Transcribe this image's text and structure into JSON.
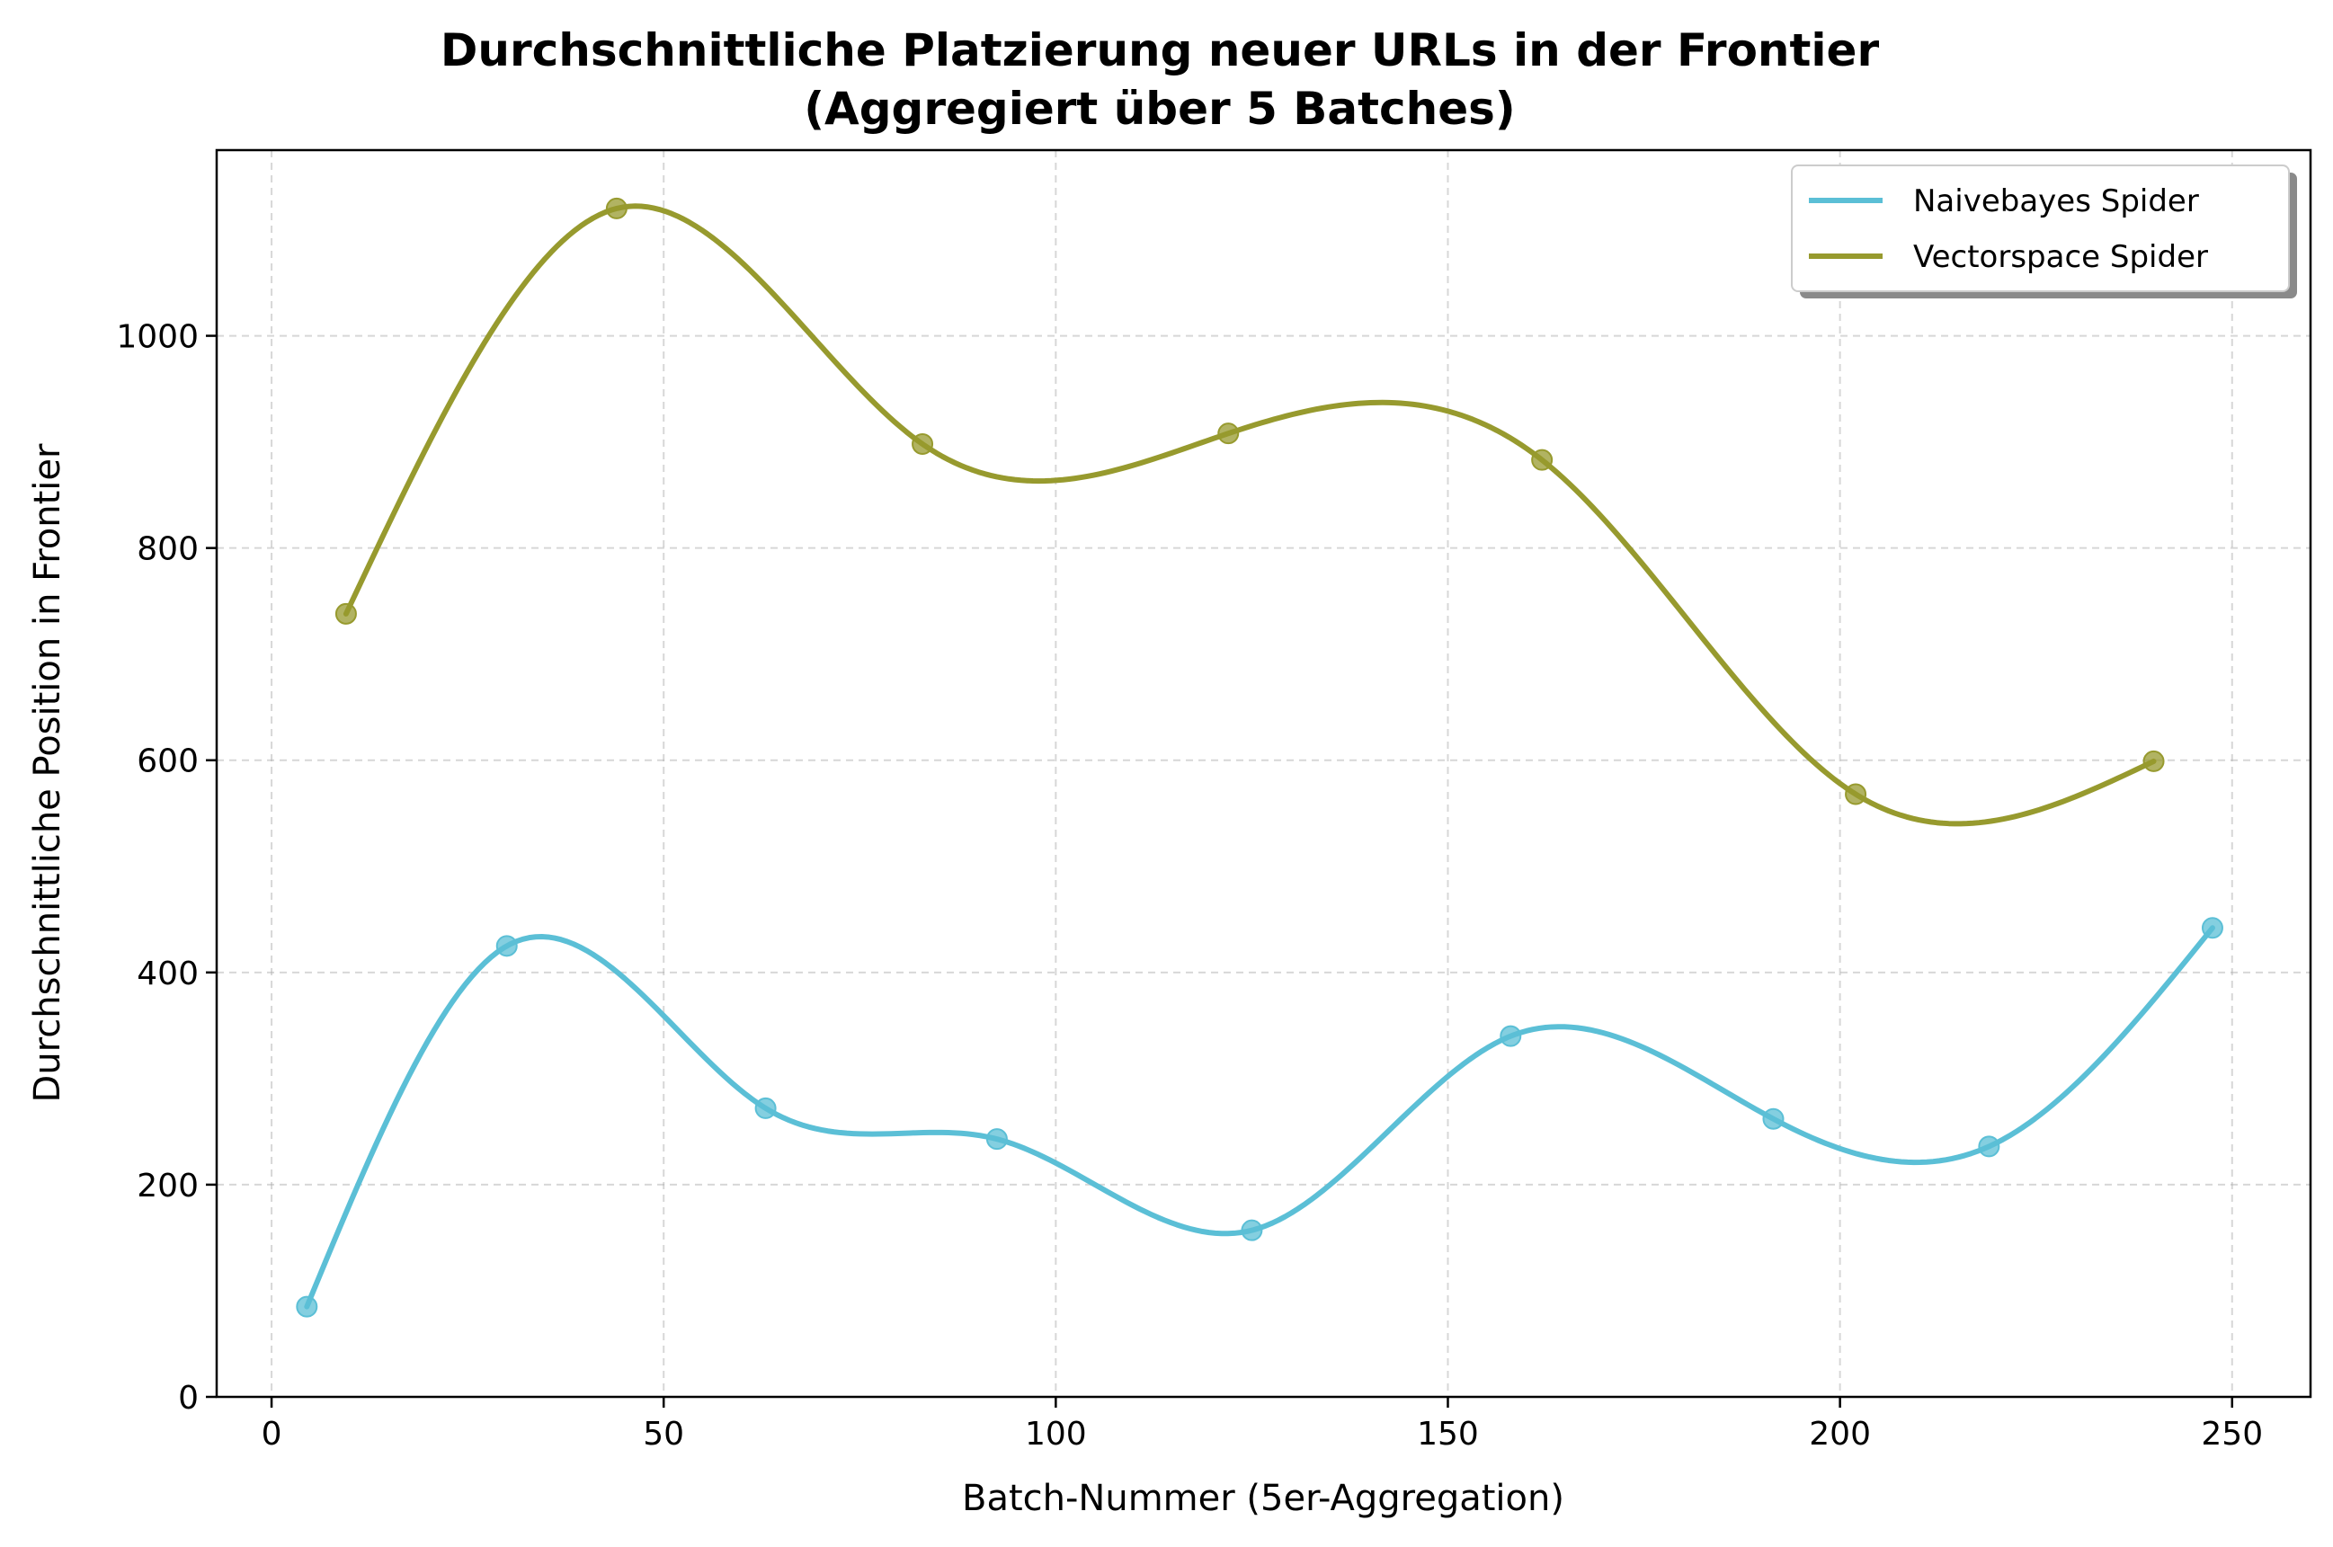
{
  "chart_data": {
    "type": "line",
    "title": "Durchschnittliche Platzierung neuer URLs in der Frontier",
    "subtitle": "(Aggregiert über 5 Batches)",
    "xlabel": "Batch-Nummer (5er-Aggregation)",
    "ylabel": "Durchschnittliche Position in Frontier",
    "xlim": [
      -7,
      260
    ],
    "ylim": [
      0,
      1175
    ],
    "xticks": [
      0,
      50,
      100,
      150,
      200,
      250
    ],
    "yticks": [
      0,
      200,
      400,
      600,
      800,
      1000
    ],
    "grid": true,
    "legend_position": "top-right",
    "series": [
      {
        "name": "Naivebayes Spider",
        "color": "#5bbfd6",
        "x": [
          4.5,
          30,
          63,
          92.5,
          125,
          158,
          191.5,
          219,
          247.5
        ],
        "values": [
          85,
          425,
          272,
          243,
          157,
          340,
          262,
          236,
          442
        ]
      },
      {
        "name": "Vectorspace Spider",
        "color": "#979a2e",
        "x": [
          9.5,
          44,
          83,
          122,
          162,
          202,
          240
        ],
        "values": [
          738,
          1120,
          898,
          908,
          883,
          568,
          599
        ]
      }
    ]
  }
}
